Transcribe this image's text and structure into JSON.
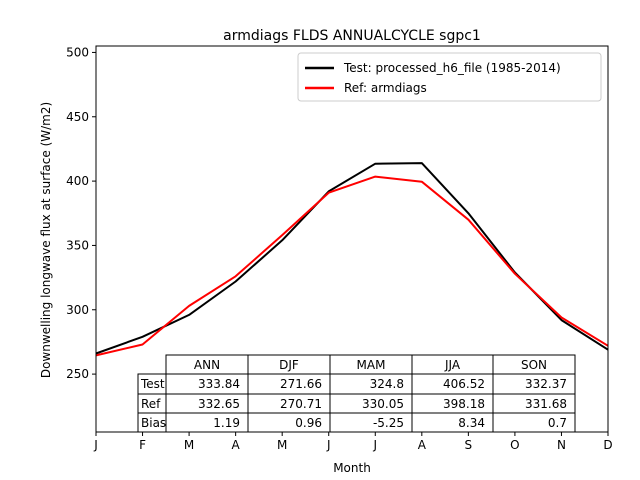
{
  "chart_data": {
    "type": "line",
    "title": "armdiags FLDS ANNUALCYCLE sgpc1",
    "xlabel": "Month",
    "ylabel": "Downwelling longwave flux at surface (W/m2)",
    "categories": [
      "J",
      "F",
      "M",
      "A",
      "M",
      "J",
      "J",
      "A",
      "S",
      "O",
      "N",
      "D"
    ],
    "ylim": [
      205,
      505
    ],
    "yticks": [
      250,
      300,
      350,
      400,
      450,
      500
    ],
    "legend_position": "top-right",
    "series": [
      {
        "name": "Test: processed_h6_file (1985-2014)",
        "color": "#000000",
        "values": [
          266,
          279,
          296,
          322,
          354,
          392,
          413.5,
          414,
          375,
          329,
          292,
          269
        ]
      },
      {
        "name": "Ref: armdiags",
        "color": "#ff0000",
        "values": [
          264.5,
          273,
          303,
          326,
          358,
          391,
          403.5,
          399.5,
          370,
          328,
          294,
          272
        ]
      }
    ],
    "table": {
      "columns": [
        "ANN",
        "DJF",
        "MAM",
        "JJA",
        "SON"
      ],
      "rows": [
        {
          "label": "Test",
          "values": [
            "333.84",
            "271.66",
            "324.8",
            "406.52",
            "332.37"
          ]
        },
        {
          "label": "Ref",
          "values": [
            "332.65",
            "270.71",
            "330.05",
            "398.18",
            "331.68"
          ]
        },
        {
          "label": "Bias",
          "values": [
            "1.19",
            "0.96",
            "-5.25",
            "8.34",
            "0.7"
          ]
        }
      ]
    }
  }
}
